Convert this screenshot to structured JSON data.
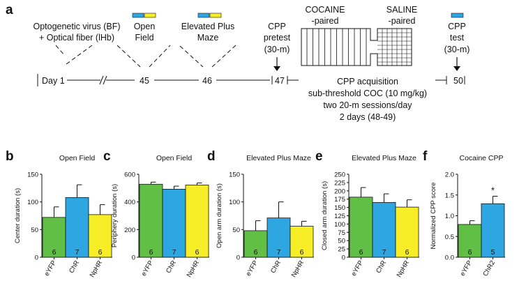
{
  "colors": {
    "green": "#62bf45",
    "blue": "#2ea6e2",
    "yellow": "#f8ee28"
  },
  "timeline": {
    "panel_label": "a",
    "virus_line1": "Optogenetic virus (BF)",
    "virus_line2": "+ Optical fiber (lHb)",
    "openfield_line1": "Open",
    "openfield_line2": "Field",
    "epm_line1": "Elevated Plus",
    "epm_line2": "Maze",
    "pretest_line1": "CPP",
    "pretest_line2": "pretest",
    "pretest_line3": "(30-m)",
    "test_line1": "CPP",
    "test_line2": "test",
    "test_line3": "(30-m)",
    "cocaine_line1": "COCAINE",
    "cocaine_line2": "-paired",
    "saline_line1": "SALINE",
    "saline_line2": "-paired",
    "acq_line1": "CPP acquisition",
    "acq_line2": "sub-threshold COC (10 mg/kg)",
    "acq_line3": "two 20-m sessions/day",
    "acq_line4": "2 days (48-49)",
    "day_label": "Day 1",
    "day45": "45",
    "day46": "46",
    "day47": "47",
    "day50": "50"
  },
  "chart_data": [
    {
      "id": "b",
      "panel_label": "b",
      "type": "bar",
      "title": "Open Field",
      "ylabel": "Center duration (s)",
      "ylim": [
        0,
        150
      ],
      "yticks": [
        0,
        50,
        100,
        150
      ],
      "categories": [
        "eYFP",
        "ChR",
        "NpHR"
      ],
      "values": [
        72,
        108,
        77
      ],
      "errors": [
        19,
        23,
        18
      ],
      "n": [
        "6",
        "7",
        "6"
      ],
      "colors": [
        "#62bf45",
        "#2ea6e2",
        "#f8ee28"
      ]
    },
    {
      "id": "c",
      "panel_label": "c",
      "type": "bar",
      "title": "Open Field",
      "ylabel": "Periphery duration (s)",
      "ylim": [
        0,
        600
      ],
      "yticks": [
        0,
        200,
        400,
        600
      ],
      "categories": [
        "eYFP",
        "ChR",
        "NpHR"
      ],
      "values": [
        528,
        492,
        522
      ],
      "errors": [
        15,
        22,
        15
      ],
      "n": [
        "6",
        "7",
        "6"
      ],
      "colors": [
        "#62bf45",
        "#2ea6e2",
        "#f8ee28"
      ]
    },
    {
      "id": "d",
      "panel_label": "d",
      "type": "bar",
      "title": "Elevated Plus Maze",
      "ylabel": "Open arm duration (s)",
      "ylim": [
        0,
        150
      ],
      "yticks": [
        0,
        50,
        100,
        150
      ],
      "categories": [
        "eYFP",
        "ChR",
        "NpHR"
      ],
      "values": [
        48,
        71,
        56
      ],
      "errors": [
        18,
        29,
        9
      ],
      "n": [
        "6",
        "7",
        "6"
      ],
      "colors": [
        "#62bf45",
        "#2ea6e2",
        "#f8ee28"
      ]
    },
    {
      "id": "e",
      "panel_label": "e",
      "type": "bar",
      "title": "Elevated Plus Maze",
      "ylabel": "Closed arm duration (s)",
      "ylim": [
        0,
        250
      ],
      "yticks": [
        0,
        25,
        50,
        75,
        100,
        125,
        150,
        175,
        200,
        225,
        250
      ],
      "categories": [
        "eYFP",
        "ChR",
        "NpHR"
      ],
      "values": [
        181,
        165,
        151
      ],
      "errors": [
        29,
        26,
        22
      ],
      "n": [
        "6",
        "7",
        "6"
      ],
      "colors": [
        "#62bf45",
        "#2ea6e2",
        "#f8ee28"
      ]
    },
    {
      "id": "f",
      "panel_label": "f",
      "type": "bar",
      "title": "Cocaine CPP",
      "ylabel": "Normalized CPP score",
      "ylim": [
        0,
        2
      ],
      "yticks": [
        "0.0",
        "0.5",
        "1.0",
        "1.5",
        "2.0"
      ],
      "categories": [
        "eYFP",
        "ChR2"
      ],
      "values": [
        0.79,
        1.29
      ],
      "errors": [
        0.09,
        0.18
      ],
      "n": [
        "6",
        "5"
      ],
      "colors": [
        "#62bf45",
        "#2ea6e2"
      ],
      "significance": [
        "",
        "*"
      ]
    }
  ]
}
